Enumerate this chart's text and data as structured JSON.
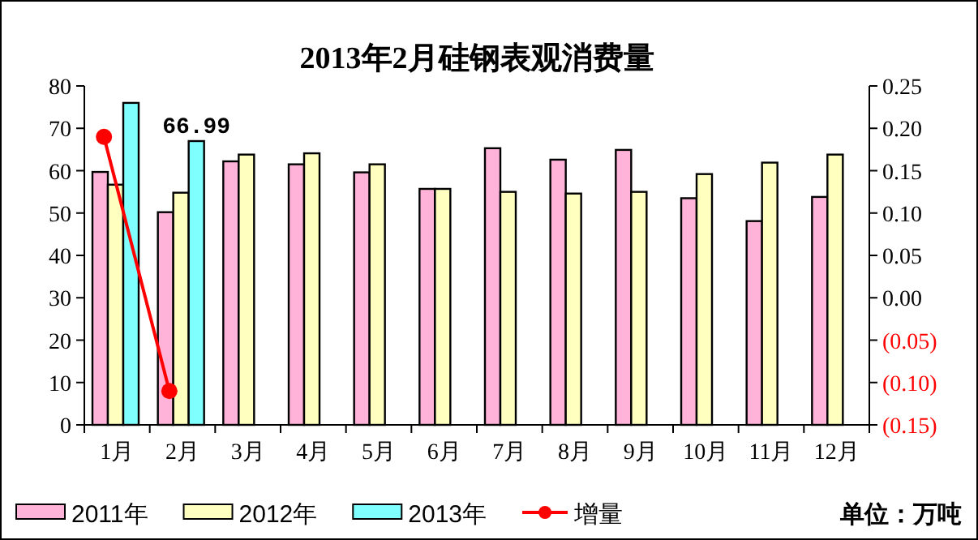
{
  "chart_data": {
    "type": "bar",
    "title": "2013年2月硅钢表观消费量",
    "categories": [
      "1月",
      "2月",
      "3月",
      "4月",
      "5月",
      "6月",
      "7月",
      "8月",
      "9月",
      "10月",
      "11月",
      "12月"
    ],
    "series": [
      {
        "name": "2011年",
        "color": "#ffb3d9",
        "values": [
          59.7,
          50.2,
          62.2,
          61.5,
          59.6,
          55.7,
          65.3,
          62.6,
          64.9,
          53.5,
          48.1,
          53.8
        ]
      },
      {
        "name": "2012年",
        "color": "#ffffc0",
        "values": [
          56.7,
          54.8,
          63.8,
          64.1,
          61.5,
          55.7,
          55.0,
          54.6,
          55.0,
          59.2,
          61.9,
          63.8
        ]
      },
      {
        "name": "2013年",
        "color": "#80ffff",
        "values": [
          76.0,
          66.99,
          null,
          null,
          null,
          null,
          null,
          null,
          null,
          null,
          null,
          null
        ],
        "value_labels": [
          null,
          "66.99",
          null,
          null,
          null,
          null,
          null,
          null,
          null,
          null,
          null,
          null
        ]
      },
      {
        "name": "增量",
        "type": "line",
        "axis": "y2",
        "color": "#ff0000",
        "marker": "circle",
        "values": [
          0.19,
          -0.11,
          null,
          null,
          null,
          null,
          null,
          null,
          null,
          null,
          null,
          null
        ]
      }
    ],
    "ylim": [
      0,
      80
    ],
    "yticks": [
      0,
      10,
      20,
      30,
      40,
      50,
      60,
      70,
      80
    ],
    "y2lim": [
      -0.15,
      0.25
    ],
    "y2ticks": [
      {
        "value": -0.15,
        "label": "(0.15)"
      },
      {
        "value": -0.1,
        "label": "(0.10)"
      },
      {
        "value": -0.05,
        "label": "(0.05)"
      },
      {
        "value": 0,
        "label": "0.00"
      },
      {
        "value": 0.05,
        "label": "0.05"
      },
      {
        "value": 0.1,
        "label": "0.10"
      },
      {
        "value": 0.15,
        "label": "0.15"
      },
      {
        "value": 0.2,
        "label": "0.20"
      },
      {
        "value": 0.25,
        "label": "0.25"
      }
    ],
    "grid": false,
    "legend": "bottom",
    "annotations": [
      "单位：万吨"
    ]
  }
}
